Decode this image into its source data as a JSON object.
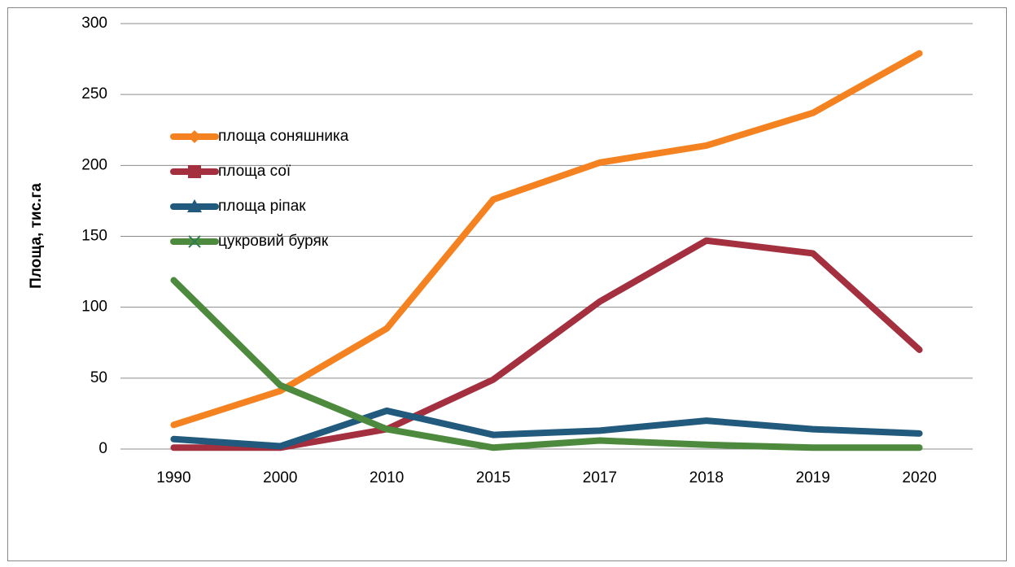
{
  "chart_data": {
    "type": "line",
    "y_label": "Площа, тис.га",
    "categories": [
      "1990",
      "2000",
      "2010",
      "2015",
      "2017",
      "2018",
      "2019",
      "2020"
    ],
    "series": [
      {
        "name": "площа соняшника",
        "color": "#f58220",
        "marker": "diamond",
        "values": [
          17,
          41,
          85,
          176,
          202,
          214,
          237,
          279
        ]
      },
      {
        "name": "площа сої",
        "color": "#a4303f",
        "marker": "square",
        "values": [
          1,
          1,
          14,
          49,
          104,
          147,
          138,
          70
        ]
      },
      {
        "name": "площа ріпак",
        "color": "#215a7d",
        "marker": "triangle",
        "values": [
          7,
          2,
          27,
          10,
          13,
          20,
          14,
          11
        ]
      },
      {
        "name": "цукровий буряк",
        "color": "#4e8a3e",
        "marker": "x",
        "values": [
          119,
          45,
          14,
          1,
          6,
          3,
          1,
          1
        ]
      }
    ],
    "ylim": [
      0,
      300
    ],
    "yticks": [
      0,
      50,
      100,
      150,
      200,
      250,
      300
    ],
    "grid": true,
    "legend": "upper left"
  }
}
